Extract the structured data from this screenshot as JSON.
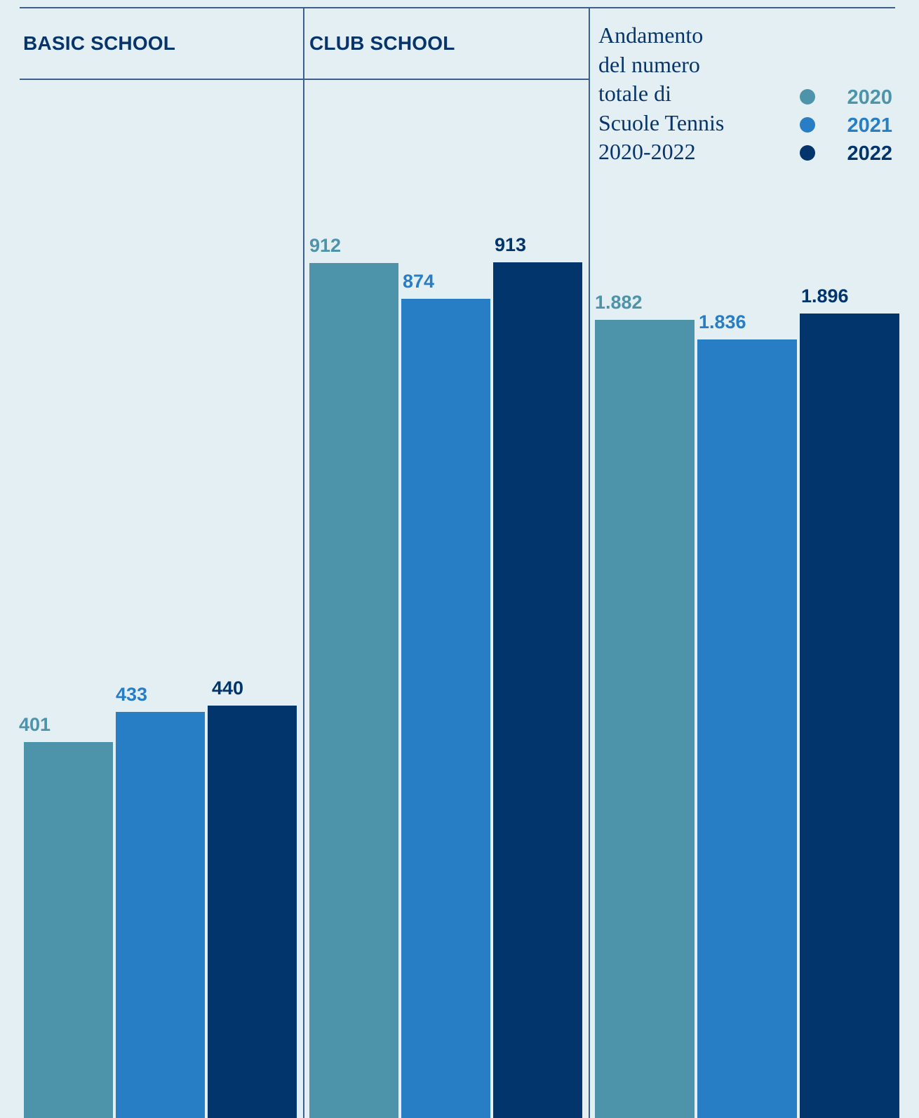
{
  "colors": {
    "2020": "#4d93aa",
    "2021": "#287ec4",
    "2022": "#02356c"
  },
  "legend": [
    {
      "label": "2020",
      "color": "#4d93aa"
    },
    {
      "label": "2021",
      "color": "#287ec4"
    },
    {
      "label": "2022",
      "color": "#02356c"
    }
  ],
  "chart_data": [
    {
      "type": "bar",
      "title": "BASIC SCHOOL",
      "categories": [
        "2020",
        "2021",
        "2022"
      ],
      "values": [
        401,
        433,
        440
      ],
      "labels": [
        "401",
        "433",
        "440"
      ]
    },
    {
      "type": "bar",
      "title": "CLUB SCHOOL",
      "categories": [
        "2020",
        "2021",
        "2022"
      ],
      "values": [
        912,
        874,
        913
      ],
      "labels": [
        "912",
        "874",
        "913"
      ]
    },
    {
      "type": "bar",
      "title_lines": [
        "Andamento",
        "del numero",
        "totale di",
        "Scuole Tennis",
        "2020-2022"
      ],
      "categories": [
        "2020",
        "2021",
        "2022"
      ],
      "values": [
        1882,
        1836,
        1896
      ],
      "labels": [
        "1.882",
        "1.836",
        "1.896"
      ]
    }
  ]
}
